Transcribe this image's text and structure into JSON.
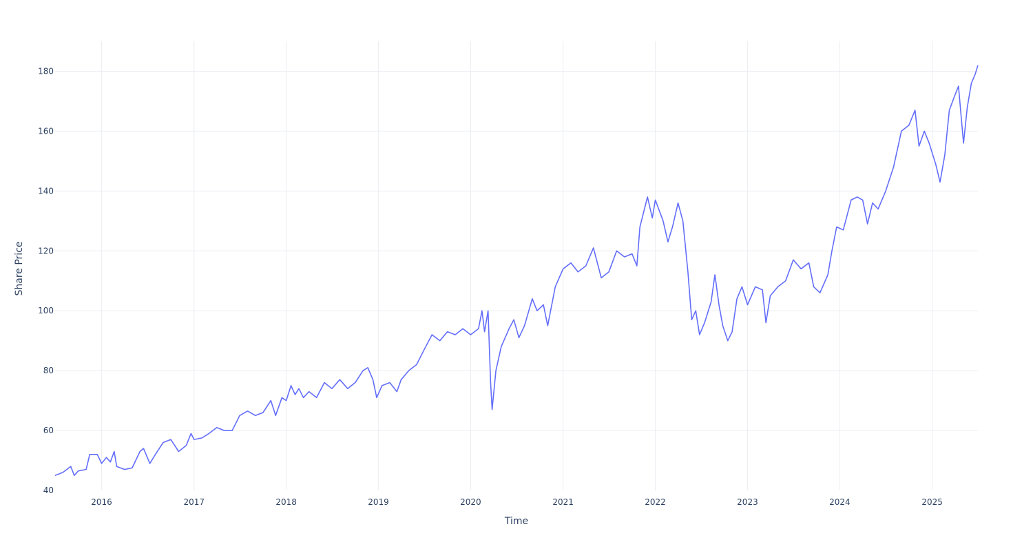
{
  "chart_data": {
    "type": "line",
    "xlabel": "Time",
    "ylabel": "Share Price",
    "xlim": [
      "2015-07-01",
      "2025-07-01"
    ],
    "ylim": [
      40,
      190
    ],
    "x_ticks": [
      "2016",
      "2017",
      "2018",
      "2019",
      "2020",
      "2021",
      "2022",
      "2023",
      "2024",
      "2025"
    ],
    "y_ticks": [
      40,
      60,
      80,
      100,
      120,
      140,
      160,
      180
    ],
    "grid": true,
    "legend": "none",
    "series_color": "#636efa",
    "series": [
      {
        "points": [
          [
            "2015-07-01",
            45
          ],
          [
            "2015-08-01",
            46
          ],
          [
            "2015-09-01",
            48
          ],
          [
            "2015-09-15",
            45
          ],
          [
            "2015-10-01",
            46.5
          ],
          [
            "2015-11-01",
            47
          ],
          [
            "2015-11-15",
            52
          ],
          [
            "2015-12-15",
            52
          ],
          [
            "2016-01-01",
            49
          ],
          [
            "2016-01-20",
            51
          ],
          [
            "2016-02-05",
            49.5
          ],
          [
            "2016-02-20",
            53
          ],
          [
            "2016-03-01",
            48
          ],
          [
            "2016-04-01",
            47
          ],
          [
            "2016-05-01",
            47.5
          ],
          [
            "2016-06-01",
            53
          ],
          [
            "2016-06-15",
            54
          ],
          [
            "2016-07-10",
            49
          ],
          [
            "2016-08-01",
            52
          ],
          [
            "2016-09-01",
            56
          ],
          [
            "2016-10-01",
            57
          ],
          [
            "2016-11-01",
            53
          ],
          [
            "2016-12-01",
            55
          ],
          [
            "2016-12-20",
            59
          ],
          [
            "2017-01-01",
            57
          ],
          [
            "2017-02-01",
            57.5
          ],
          [
            "2017-03-01",
            59
          ],
          [
            "2017-04-01",
            61
          ],
          [
            "2017-05-01",
            60
          ],
          [
            "2017-06-01",
            60
          ],
          [
            "2017-07-01",
            65
          ],
          [
            "2017-08-01",
            66.5
          ],
          [
            "2017-09-01",
            65
          ],
          [
            "2017-10-01",
            66
          ],
          [
            "2017-11-01",
            70
          ],
          [
            "2017-11-20",
            65
          ],
          [
            "2017-12-15",
            71
          ],
          [
            "2018-01-01",
            70
          ],
          [
            "2018-01-20",
            75
          ],
          [
            "2018-02-05",
            72
          ],
          [
            "2018-02-20",
            74
          ],
          [
            "2018-03-10",
            71
          ],
          [
            "2018-04-01",
            73
          ],
          [
            "2018-05-01",
            71
          ],
          [
            "2018-06-01",
            76
          ],
          [
            "2018-07-01",
            74
          ],
          [
            "2018-08-01",
            77
          ],
          [
            "2018-09-01",
            74
          ],
          [
            "2018-10-01",
            76
          ],
          [
            "2018-11-01",
            80
          ],
          [
            "2018-11-20",
            81
          ],
          [
            "2018-12-10",
            77
          ],
          [
            "2018-12-25",
            71
          ],
          [
            "2019-01-15",
            75
          ],
          [
            "2019-02-15",
            76
          ],
          [
            "2019-03-15",
            73
          ],
          [
            "2019-04-01",
            77
          ],
          [
            "2019-05-01",
            80
          ],
          [
            "2019-06-01",
            82
          ],
          [
            "2019-07-01",
            87
          ],
          [
            "2019-08-01",
            92
          ],
          [
            "2019-09-01",
            90
          ],
          [
            "2019-10-01",
            93
          ],
          [
            "2019-11-01",
            92
          ],
          [
            "2019-12-01",
            94
          ],
          [
            "2020-01-01",
            92
          ],
          [
            "2020-02-01",
            94
          ],
          [
            "2020-02-15",
            100
          ],
          [
            "2020-02-25",
            93
          ],
          [
            "2020-03-10",
            100
          ],
          [
            "2020-03-20",
            76
          ],
          [
            "2020-03-26",
            67
          ],
          [
            "2020-04-10",
            80
          ],
          [
            "2020-05-01",
            88
          ],
          [
            "2020-06-01",
            94
          ],
          [
            "2020-06-20",
            97
          ],
          [
            "2020-07-10",
            91
          ],
          [
            "2020-08-01",
            95
          ],
          [
            "2020-09-01",
            104
          ],
          [
            "2020-09-20",
            100
          ],
          [
            "2020-10-15",
            102
          ],
          [
            "2020-11-01",
            95
          ],
          [
            "2020-12-01",
            108
          ],
          [
            "2021-01-01",
            114
          ],
          [
            "2021-02-01",
            116
          ],
          [
            "2021-03-01",
            113
          ],
          [
            "2021-04-01",
            115
          ],
          [
            "2021-05-01",
            121
          ],
          [
            "2021-06-01",
            111
          ],
          [
            "2021-07-01",
            113
          ],
          [
            "2021-08-01",
            120
          ],
          [
            "2021-09-01",
            118
          ],
          [
            "2021-10-01",
            119
          ],
          [
            "2021-10-20",
            115
          ],
          [
            "2021-11-01",
            128
          ],
          [
            "2021-12-01",
            138
          ],
          [
            "2021-12-20",
            131
          ],
          [
            "2022-01-01",
            137
          ],
          [
            "2022-02-01",
            130
          ],
          [
            "2022-02-20",
            123
          ],
          [
            "2022-03-10",
            128
          ],
          [
            "2022-04-01",
            136
          ],
          [
            "2022-04-20",
            130
          ],
          [
            "2022-05-10",
            113
          ],
          [
            "2022-05-25",
            97
          ],
          [
            "2022-06-10",
            100
          ],
          [
            "2022-06-25",
            92
          ],
          [
            "2022-07-15",
            96
          ],
          [
            "2022-08-10",
            103
          ],
          [
            "2022-08-25",
            112
          ],
          [
            "2022-09-10",
            102
          ],
          [
            "2022-09-25",
            95
          ],
          [
            "2022-10-15",
            90
          ],
          [
            "2022-11-01",
            93
          ],
          [
            "2022-11-20",
            104
          ],
          [
            "2022-12-10",
            108
          ],
          [
            "2023-01-01",
            102
          ],
          [
            "2023-02-01",
            108
          ],
          [
            "2023-03-01",
            107
          ],
          [
            "2023-03-15",
            96
          ],
          [
            "2023-04-01",
            105
          ],
          [
            "2023-05-01",
            108
          ],
          [
            "2023-06-01",
            110
          ],
          [
            "2023-07-01",
            117
          ],
          [
            "2023-08-01",
            114
          ],
          [
            "2023-09-01",
            116
          ],
          [
            "2023-09-20",
            108
          ],
          [
            "2023-10-15",
            106
          ],
          [
            "2023-11-15",
            112
          ],
          [
            "2023-12-01",
            120
          ],
          [
            "2023-12-20",
            128
          ],
          [
            "2024-01-15",
            127
          ],
          [
            "2024-02-15",
            137
          ],
          [
            "2024-03-10",
            138
          ],
          [
            "2024-04-01",
            137
          ],
          [
            "2024-04-20",
            129
          ],
          [
            "2024-05-10",
            136
          ],
          [
            "2024-06-01",
            134
          ],
          [
            "2024-07-01",
            140
          ],
          [
            "2024-08-01",
            148
          ],
          [
            "2024-09-01",
            160
          ],
          [
            "2024-10-01",
            162
          ],
          [
            "2024-10-25",
            167
          ],
          [
            "2024-11-10",
            155
          ],
          [
            "2024-12-01",
            160
          ],
          [
            "2024-12-20",
            156
          ],
          [
            "2025-01-15",
            149
          ],
          [
            "2025-02-01",
            143
          ],
          [
            "2025-02-20",
            152
          ],
          [
            "2025-03-10",
            167
          ],
          [
            "2025-04-01",
            172
          ],
          [
            "2025-04-15",
            175
          ],
          [
            "2025-05-05",
            156
          ],
          [
            "2025-05-20",
            168
          ],
          [
            "2025-06-05",
            176
          ],
          [
            "2025-06-20",
            179
          ],
          [
            "2025-07-01",
            182
          ]
        ]
      }
    ]
  }
}
